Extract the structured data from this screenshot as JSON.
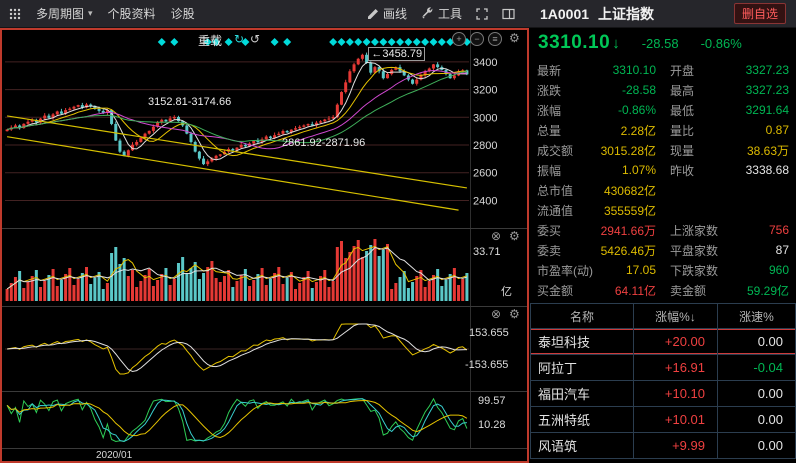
{
  "toolbar": {
    "multi_period": "多周期图",
    "stock_info": "个股资料",
    "diagnose": "诊股",
    "draw_line": "画线",
    "tools": "工具"
  },
  "icons": {
    "caret": "▾",
    "gear": "⚙",
    "close_circle": "⊗",
    "plus": "+",
    "minus": "−",
    "hamburger": "≡",
    "refresh_a": "↻",
    "refresh_b": "↺"
  },
  "chart": {
    "reload_label": "重载",
    "xaxis_label": "2020/01"
  },
  "quote": {
    "code": "1A0001",
    "name": "上证指数",
    "delete_btn": "删自选",
    "price": "3310.10",
    "arrow": "↓",
    "change": "-28.58",
    "change_pct": "-0.86%",
    "rows": [
      [
        {
          "label": "最新",
          "value": "3310.10",
          "color": "green"
        },
        {
          "label": "开盘",
          "value": "3327.23",
          "color": "green"
        }
      ],
      [
        {
          "label": "涨跌",
          "value": "-28.58",
          "color": "green"
        },
        {
          "label": "最高",
          "value": "3327.23",
          "color": "green"
        }
      ],
      [
        {
          "label": "涨幅",
          "value": "-0.86%",
          "color": "green"
        },
        {
          "label": "最低",
          "value": "3291.64",
          "color": "green"
        }
      ],
      [
        {
          "label": "总量",
          "value": "2.28亿",
          "color": "yellow"
        },
        {
          "label": "量比",
          "value": "0.87",
          "color": "yellow"
        }
      ],
      [
        {
          "label": "成交额",
          "value": "3015.28亿",
          "color": "yellow"
        },
        {
          "label": "现量",
          "value": "38.63万",
          "color": "yellow"
        }
      ],
      [
        {
          "label": "振幅",
          "value": "1.07%",
          "color": "yellow"
        },
        {
          "label": "昨收",
          "value": "3338.68",
          "color": "white"
        }
      ],
      [
        {
          "label": "总市值",
          "value": "430682亿",
          "color": "yellow"
        },
        null
      ],
      [
        {
          "label": "流通值",
          "value": "355559亿",
          "color": "yellow"
        },
        null
      ],
      [
        {
          "label": "委买",
          "value": "2941.66万",
          "color": "red"
        },
        {
          "label": "上涨家数",
          "value": "756",
          "color": "red"
        }
      ],
      [
        {
          "label": "委卖",
          "value": "5426.46万",
          "color": "yellow"
        },
        {
          "label": "平盘家数",
          "value": "87",
          "color": "white"
        }
      ],
      [
        {
          "label": "市盈率(动)",
          "value": "17.05",
          "color": "yellow"
        },
        {
          "label": "下跌家数",
          "value": "960",
          "color": "green"
        }
      ],
      [
        {
          "label": "买金额",
          "value": "64.11亿",
          "color": "red"
        },
        {
          "label": "卖金额",
          "value": "59.29亿",
          "color": "green"
        }
      ]
    ]
  },
  "ranking": {
    "headers": [
      "名称",
      "涨幅%↓",
      "涨速%"
    ],
    "rows": [
      {
        "name": "泰坦科技",
        "change": "+20.00",
        "change_color": "red",
        "speed": "0.00",
        "speed_color": "white",
        "selected": true
      },
      {
        "name": "阿拉丁",
        "change": "+16.91",
        "change_color": "red",
        "speed": "-0.04",
        "speed_color": "green",
        "selected": false
      },
      {
        "name": "福田汽车",
        "change": "+10.10",
        "change_color": "red",
        "speed": "0.00",
        "speed_color": "white",
        "selected": false
      },
      {
        "name": "五洲特纸",
        "change": "+10.01",
        "change_color": "red",
        "speed": "0.00",
        "speed_color": "white",
        "selected": false
      },
      {
        "name": "风语筑",
        "change": "+9.99",
        "change_color": "red",
        "speed": "0.00",
        "speed_color": "white",
        "selected": false
      }
    ]
  },
  "chart_data": {
    "type": "candlestick",
    "symbol": "上证指数 1A0001 daily",
    "x_visible_label": "2020/01",
    "y_ticks": [
      3400,
      3200,
      3000,
      2800,
      2600,
      2400
    ],
    "price_min": 2230,
    "price_max": 3500,
    "first_open": 2900,
    "peak_index": 85,
    "peak_high": 3458.79,
    "last_close": 3310.1,
    "prev_close": 3338.68,
    "closes": [
      2912,
      2926,
      2941,
      2922,
      2953,
      2968,
      2981,
      2962,
      2991,
      3012,
      2996,
      3021,
      3042,
      3026,
      3052,
      3062,
      3076,
      3088,
      3071,
      3092,
      3082,
      3061,
      3046,
      3031,
      3052,
      2952,
      2832,
      2752,
      2722,
      2762,
      2802,
      2822,
      2852,
      2882,
      2902,
      2932,
      2962,
      2982,
      2971,
      2992,
      3002,
      2972,
      2941,
      2882,
      2822,
      2752,
      2702,
      2662,
      2682,
      2702,
      2722,
      2732,
      2752,
      2771,
      2761,
      2781,
      2801,
      2791,
      2811,
      2831,
      2821,
      2841,
      2861,
      2851,
      2871,
      2881,
      2901,
      2891,
      2911,
      2921,
      2931,
      2941,
      2951,
      2941,
      2961,
      2971,
      2984,
      2991,
      3002,
      3091,
      3182,
      3252,
      3332,
      3382,
      3422,
      3451,
      3392,
      3322,
      3362,
      3332,
      3282,
      3312,
      3342,
      3362,
      3332,
      3302,
      3272,
      3242,
      3272,
      3302,
      3332,
      3352,
      3382,
      3362,
      3342,
      3312,
      3282,
      3302,
      3332,
      3338.68,
      3310.1
    ],
    "signal_indices": [
      37,
      40,
      48,
      50,
      53,
      57,
      64,
      67,
      78,
      80,
      82,
      84,
      86,
      88,
      90,
      92,
      94,
      96,
      98,
      100,
      102,
      104,
      106,
      108,
      110
    ],
    "trendlines": [
      [
        0,
        3010,
        110,
        2490
      ],
      [
        0,
        2860,
        108,
        2330
      ]
    ],
    "annotations": {
      "peak": "←3458.79",
      "gap_upper": "3152.81-3174.66",
      "gap_lower": "2861.92-2871.96"
    },
    "sub_indicators": {
      "volume_scale": "33.71",
      "volume_unit": "亿",
      "ind3_top": "153.655",
      "ind3_bottom": "-153.655",
      "ind4_top": "99.57",
      "ind4_bottom": "10.28"
    }
  }
}
